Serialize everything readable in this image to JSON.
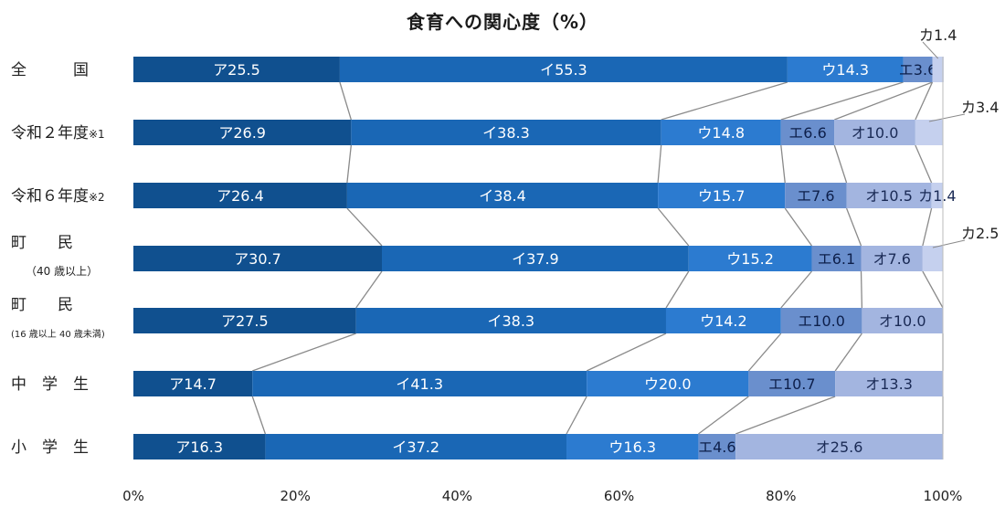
{
  "chart_data": {
    "type": "bar",
    "orientation": "horizontal",
    "stacked": true,
    "title": "食育への関心度（%）",
    "xlim": [
      0,
      100
    ],
    "x_ticks": [
      "0%",
      "20%",
      "40%",
      "60%",
      "80%",
      "100%"
    ],
    "grid": false,
    "connector_lines": true,
    "categories": [
      {
        "label": "全　　　国",
        "sublabel": ""
      },
      {
        "label": "令和２年度",
        "suffix": "※1",
        "sublabel": ""
      },
      {
        "label": "令和６年度",
        "suffix": "※2",
        "sublabel": ""
      },
      {
        "label": "町　　民",
        "sublabel": "（40 歳以上）"
      },
      {
        "label": "町　　民",
        "sublabel": "(16 歳以上 40 歳未満)"
      },
      {
        "label": "中　学　生",
        "sublabel": ""
      },
      {
        "label": "小　学　生",
        "sublabel": ""
      }
    ],
    "series": [
      {
        "name": "ア",
        "color": "#10508f",
        "values": [
          25.5,
          26.9,
          26.4,
          30.7,
          27.5,
          14.7,
          16.3
        ]
      },
      {
        "name": "イ",
        "color": "#1a67b5",
        "values": [
          55.3,
          38.3,
          38.4,
          37.9,
          38.3,
          41.3,
          37.2
        ]
      },
      {
        "name": "ウ",
        "color": "#2c7bd0",
        "values": [
          14.3,
          14.8,
          15.7,
          15.2,
          14.2,
          20.0,
          16.3
        ]
      },
      {
        "name": "エ",
        "color": "#6a8fcd",
        "values": [
          3.6,
          6.6,
          7.6,
          6.1,
          10.0,
          10.7,
          4.6
        ]
      },
      {
        "name": "オ",
        "color": "#a3b5e0",
        "values": [
          0,
          10.0,
          10.5,
          7.6,
          10.0,
          13.3,
          25.6
        ]
      },
      {
        "name": "カ",
        "color": "#c5d0ee",
        "values": [
          1.4,
          3.4,
          1.4,
          2.5,
          0,
          0,
          0
        ]
      }
    ],
    "data_labels": [
      [
        "ア25.5",
        "イ55.3",
        "ウ14.3",
        "エ3.6",
        "",
        "カ1.4"
      ],
      [
        "ア26.9",
        "イ38.3",
        "ウ14.8",
        "エ6.6",
        "オ10.0",
        "カ3.4"
      ],
      [
        "ア26.4",
        "イ38.4",
        "ウ15.7",
        "エ7.6",
        "オ10.5",
        "カ1.4"
      ],
      [
        "ア30.7",
        "イ37.9",
        "ウ15.2",
        "エ6.1",
        "オ7.6",
        "カ2.5"
      ],
      [
        "ア27.5",
        "イ38.3",
        "ウ14.2",
        "エ10.0",
        "オ10.0",
        ""
      ],
      [
        "ア14.7",
        "イ41.3",
        "ウ20.0",
        "エ10.7",
        "オ13.3",
        ""
      ],
      [
        "ア16.3",
        "イ37.2",
        "ウ16.3",
        "エ4.6",
        "オ25.6",
        ""
      ]
    ]
  }
}
